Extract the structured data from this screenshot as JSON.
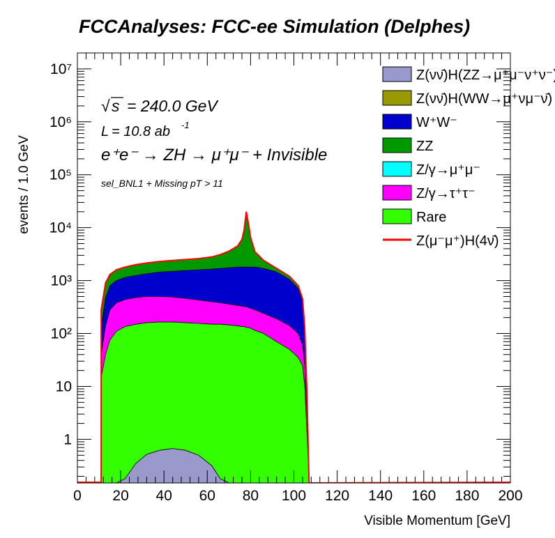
{
  "chart_data": {
    "type": "area",
    "title": "FCCAnalyses: FCC-ee Simulation (Delphes)",
    "xlabel": "Visible Momentum [GeV]",
    "ylabel": "events / 1.0 GeV",
    "x_range": [
      0,
      200
    ],
    "y_range": [
      0.15,
      20000000
    ],
    "y_scale": "log",
    "x_ticks": [
      "0",
      "20",
      "40",
      "60",
      "80",
      "100",
      "120",
      "140",
      "160",
      "180",
      "200"
    ],
    "y_ticks": [
      {
        "value": 1,
        "label": "1"
      },
      {
        "value": 10,
        "label": "10"
      },
      {
        "value": 100,
        "label": "10²"
      },
      {
        "value": 1000,
        "label": "10³"
      },
      {
        "value": 10000,
        "label": "10⁴"
      },
      {
        "value": 100000,
        "label": "10⁵"
      },
      {
        "value": 1000000,
        "label": "10⁶"
      },
      {
        "value": 10000000,
        "label": "10⁷"
      }
    ],
    "legend_position": "top-right",
    "annotations": {
      "sqrt_s_value": "= 240.0 GeV",
      "lumi_value": "= 10.8 ab",
      "lumi_exp": "-1",
      "process": "e⁺e⁻ → ZH → μ⁺μ⁻ + Invisible",
      "selection": "sel_BNL1 + Missing pT > 11"
    },
    "x_bins": [
      11,
      13,
      15,
      18,
      22,
      27,
      32,
      38,
      44,
      50,
      56,
      62,
      66,
      70,
      74,
      76,
      77,
      78,
      79,
      80,
      82,
      86,
      92,
      98,
      102,
      104,
      105,
      106,
      107
    ],
    "series": [
      {
        "name": "Z(νν̄)H(ZZ→μ⁺μ⁻ν⁺ν⁻)",
        "color": "#9999cc",
        "cumulative": [
          0,
          0,
          0,
          0,
          0.18,
          0.35,
          0.52,
          0.62,
          0.67,
          0.62,
          0.5,
          0.32,
          0.18,
          0,
          0,
          0,
          0,
          0,
          0,
          0,
          0,
          0,
          0,
          0,
          0,
          0,
          0,
          0,
          0
        ]
      },
      {
        "name": "Z(νν̄)H(WW→μ⁺νμ⁻ν̄)",
        "color": "#999900",
        "cumulative": [
          0,
          0,
          0,
          0,
          0.18,
          0.35,
          0.52,
          0.62,
          0.67,
          0.62,
          0.5,
          0.32,
          0.18,
          0,
          0,
          0,
          0,
          0,
          0,
          0,
          0,
          0,
          0,
          0,
          0,
          0,
          0,
          0,
          0
        ]
      },
      {
        "name": "Rare",
        "color": "#33ff00",
        "cumulative": [
          15,
          40,
          75,
          110,
          135,
          150,
          160,
          165,
          165,
          160,
          155,
          150,
          150,
          145,
          140,
          135,
          135,
          130,
          130,
          125,
          115,
          100,
          70,
          50,
          35,
          25,
          10,
          1.5,
          0
        ]
      },
      {
        "name": "Z/γ→τ⁺τ⁻",
        "color": "#ff00ff",
        "cumulative": [
          40,
          140,
          280,
          380,
          440,
          480,
          500,
          500,
          490,
          460,
          430,
          400,
          380,
          360,
          340,
          330,
          320,
          320,
          310,
          300,
          280,
          240,
          190,
          140,
          100,
          60,
          25,
          3,
          0
        ]
      },
      {
        "name": "Z/γ→μ⁺μ⁻",
        "color": "#00ffff",
        "cumulative": [
          40,
          140,
          280,
          380,
          440,
          480,
          500,
          500,
          490,
          460,
          430,
          400,
          380,
          360,
          340,
          330,
          320,
          320,
          310,
          300,
          280,
          240,
          190,
          140,
          100,
          60,
          25,
          3,
          0
        ]
      },
      {
        "name": "W⁺W⁻",
        "color": "#0000cc",
        "cumulative": [
          130,
          480,
          800,
          1000,
          1150,
          1250,
          1350,
          1450,
          1500,
          1550,
          1600,
          1650,
          1700,
          1750,
          1800,
          1800,
          1800,
          1800,
          1800,
          1800,
          1800,
          1700,
          1450,
          1050,
          700,
          400,
          120,
          8,
          0
        ]
      },
      {
        "name": "ZZ",
        "color": "#009900",
        "cumulative": [
          280,
          900,
          1300,
          1600,
          1800,
          2000,
          2150,
          2300,
          2400,
          2500,
          2600,
          2800,
          3100,
          3600,
          4500,
          6000,
          9000,
          20000,
          12000,
          6500,
          3500,
          2400,
          1700,
          1200,
          800,
          450,
          130,
          8,
          0
        ]
      }
    ],
    "signal": {
      "name": "Z(μ⁻μ⁺)H(4ν̄)",
      "color": "#ff0000",
      "values": [
        280,
        900,
        1300,
        1600,
        1800,
        2000,
        2150,
        2300,
        2400,
        2500,
        2600,
        2800,
        3100,
        3600,
        4500,
        6000,
        9000,
        20000,
        12000,
        6500,
        3500,
        2400,
        1700,
        1200,
        800,
        450,
        130,
        8,
        0.15
      ]
    },
    "legend": [
      {
        "label": "Z(νν̄)H(ZZ→μ⁺μ⁻ν⁺ν⁻)",
        "color": "#9999cc",
        "kind": "box"
      },
      {
        "label": "Z(νν̄)H(WW→μ⁺νμ⁻ν̄)",
        "color": "#999900",
        "kind": "box"
      },
      {
        "label": "W⁺W⁻",
        "color": "#0000cc",
        "kind": "box"
      },
      {
        "label": "ZZ",
        "color": "#009900",
        "kind": "box"
      },
      {
        "label": "Z/γ→μ⁺μ⁻",
        "color": "#00ffff",
        "kind": "box"
      },
      {
        "label": "Z/γ→τ⁺τ⁻",
        "color": "#ff00ff",
        "kind": "box"
      },
      {
        "label": "Rare",
        "color": "#33ff00",
        "kind": "box"
      },
      {
        "label": "Z(μ⁻μ⁺)H(4ν̄)",
        "color": "#ff0000",
        "kind": "line"
      }
    ]
  }
}
